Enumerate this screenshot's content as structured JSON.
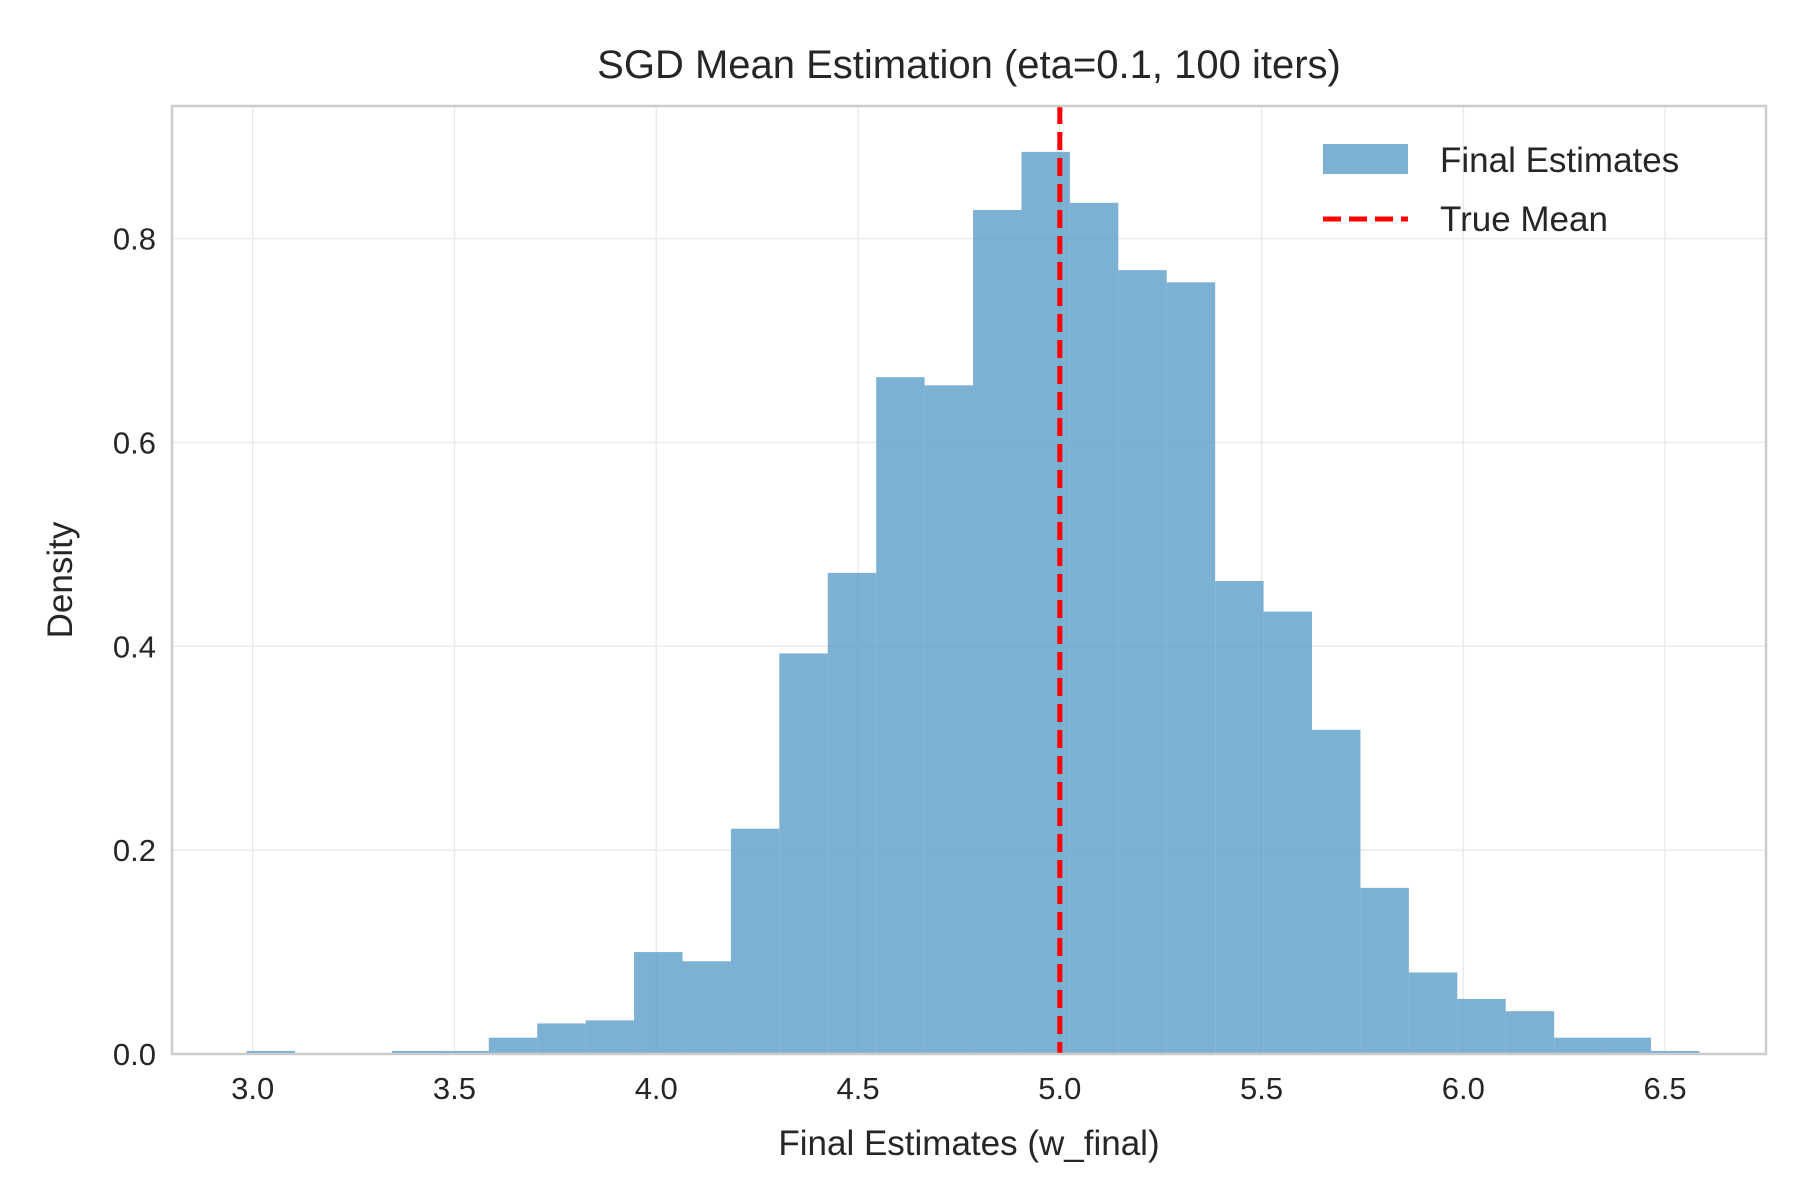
{
  "chart_data": {
    "type": "bar",
    "title": "SGD Mean Estimation (eta=0.1, 100 iters)",
    "xlabel": "Final Estimates (w_final)",
    "ylabel": "Density",
    "xlim": [
      2.8,
      6.75
    ],
    "ylim": [
      0,
      0.93
    ],
    "x_ticks": [
      3.0,
      3.5,
      4.0,
      4.5,
      5.0,
      5.5,
      6.0,
      6.5
    ],
    "x_tick_labels": [
      "3.0",
      "3.5",
      "4.0",
      "4.5",
      "5.0",
      "5.5",
      "6.0",
      "6.5"
    ],
    "y_ticks": [
      0.0,
      0.2,
      0.4,
      0.6,
      0.8
    ],
    "y_tick_labels": [
      "0.0",
      "0.2",
      "0.4",
      "0.6",
      "0.8"
    ],
    "grid": true,
    "legend_position": "top-right",
    "bar_color": "#5b9ec9",
    "bin_edges": [
      2.985,
      3.105,
      3.225,
      3.345,
      3.465,
      3.585,
      3.705,
      3.825,
      3.945,
      4.065,
      4.185,
      4.305,
      4.425,
      4.545,
      4.665,
      4.785,
      4.905,
      5.025,
      5.145,
      5.265,
      5.385,
      5.505,
      5.625,
      5.745,
      5.865,
      5.985,
      6.105,
      6.225,
      6.345,
      6.465,
      6.585
    ],
    "series": [
      {
        "name": "Final Estimates",
        "values": [
          0.003,
          0,
          0,
          0.003,
          0.003,
          0.016,
          0.03,
          0.033,
          0.1,
          0.091,
          0.221,
          0.393,
          0.472,
          0.664,
          0.656,
          0.828,
          0.885,
          0.835,
          0.769,
          0.757,
          0.464,
          0.434,
          0.318,
          0.163,
          0.08,
          0.054,
          0.042,
          0.016,
          0.016,
          0.003
        ]
      }
    ],
    "reference_lines": [
      {
        "name": "True Mean",
        "x": 5.0,
        "color": "#ff0000",
        "style": "dashed"
      }
    ]
  }
}
